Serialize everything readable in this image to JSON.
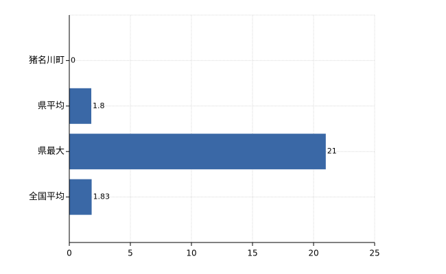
{
  "chart_data": {
    "type": "hbar",
    "categories": [
      "猪名川町",
      "県平均",
      "県最大",
      "全国平均"
    ],
    "values": [
      0,
      1.8,
      21,
      1.83
    ],
    "color": "#3a68a6",
    "xlim": [
      0,
      25
    ],
    "xticks": [
      0,
      5,
      10,
      15,
      20,
      25
    ],
    "grid": true
  }
}
